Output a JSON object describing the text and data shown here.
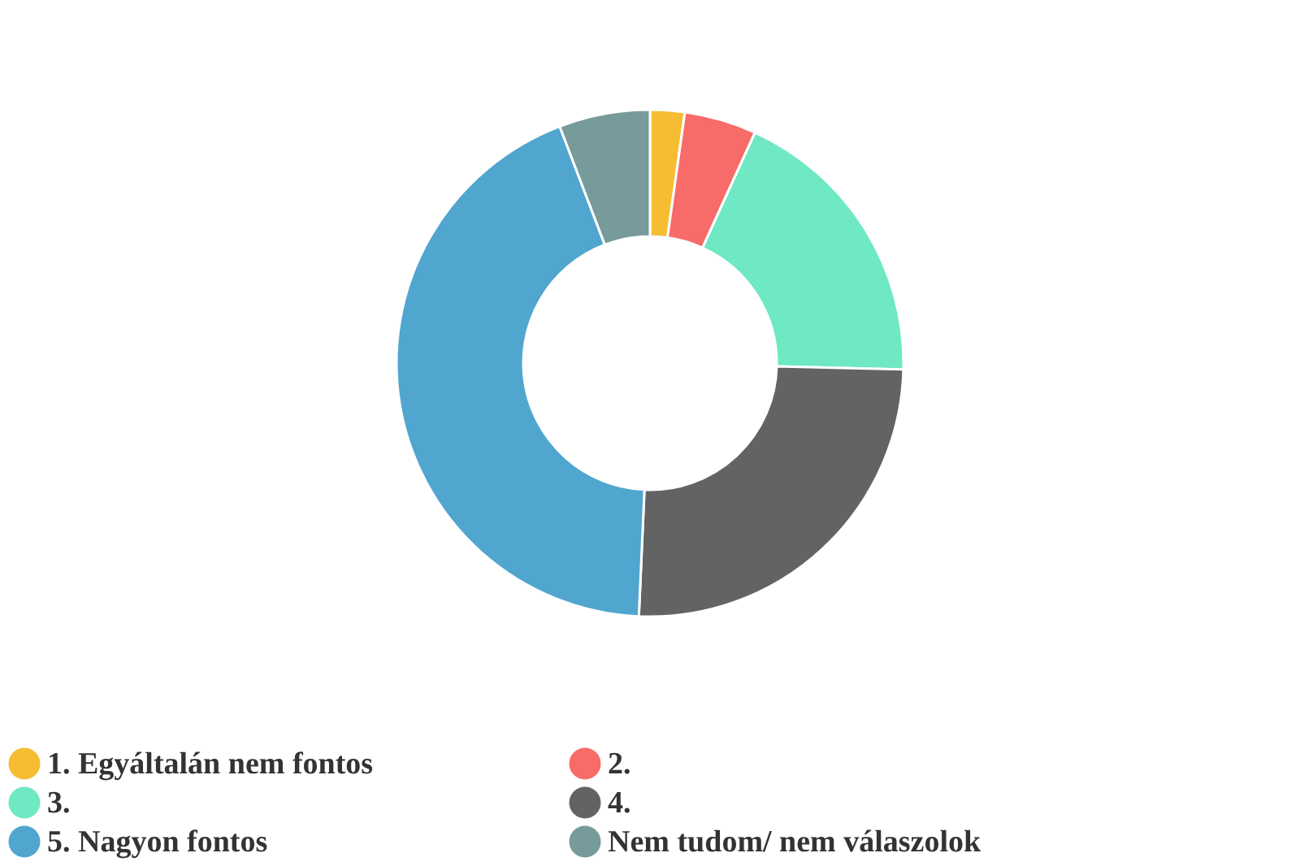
{
  "chart_data": {
    "type": "donut",
    "categories": [
      "1. Egyáltalán nem fontos",
      "2.",
      "3.",
      "4.",
      "5. Nagyon fontos",
      "Nem tudom/ nem válaszolok"
    ],
    "values": [
      2.2,
      4.6,
      18.6,
      25.3,
      43.5,
      5.8
    ],
    "colors": [
      "#f6bd33",
      "#f76b68",
      "#6fe8c4",
      "#636363",
      "#50a6cf",
      "#779a9a"
    ],
    "legend": "bottom"
  }
}
